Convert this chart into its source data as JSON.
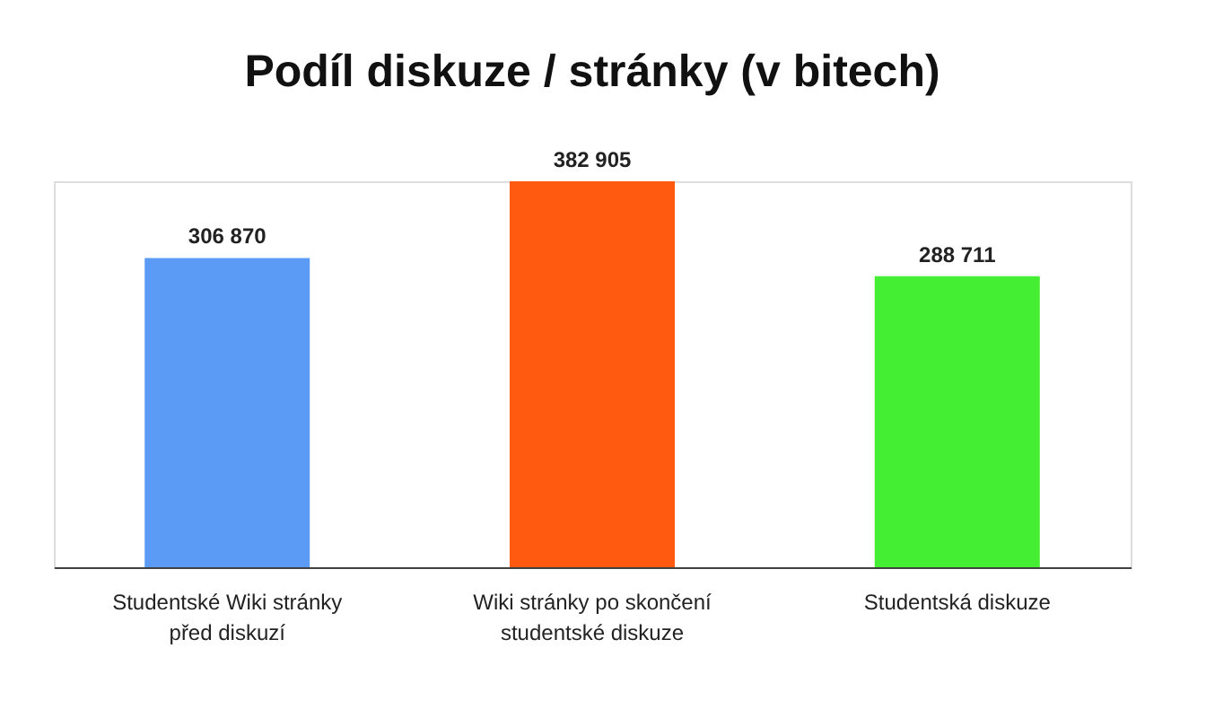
{
  "chart_data": {
    "type": "bar",
    "title": "Podíl diskuze / stránky (v bitech)",
    "categories": [
      "Studentské Wiki stránky před diskuzí",
      "Wiki stránky po skončení studentské diskuze",
      "Studentská diskuze"
    ],
    "values": [
      306870,
      382905,
      288711
    ],
    "colors": [
      "#5b9bf5",
      "#ff5a10",
      "#44ee33"
    ],
    "value_labels": [
      "306 870",
      "382 905",
      "288 711"
    ]
  }
}
